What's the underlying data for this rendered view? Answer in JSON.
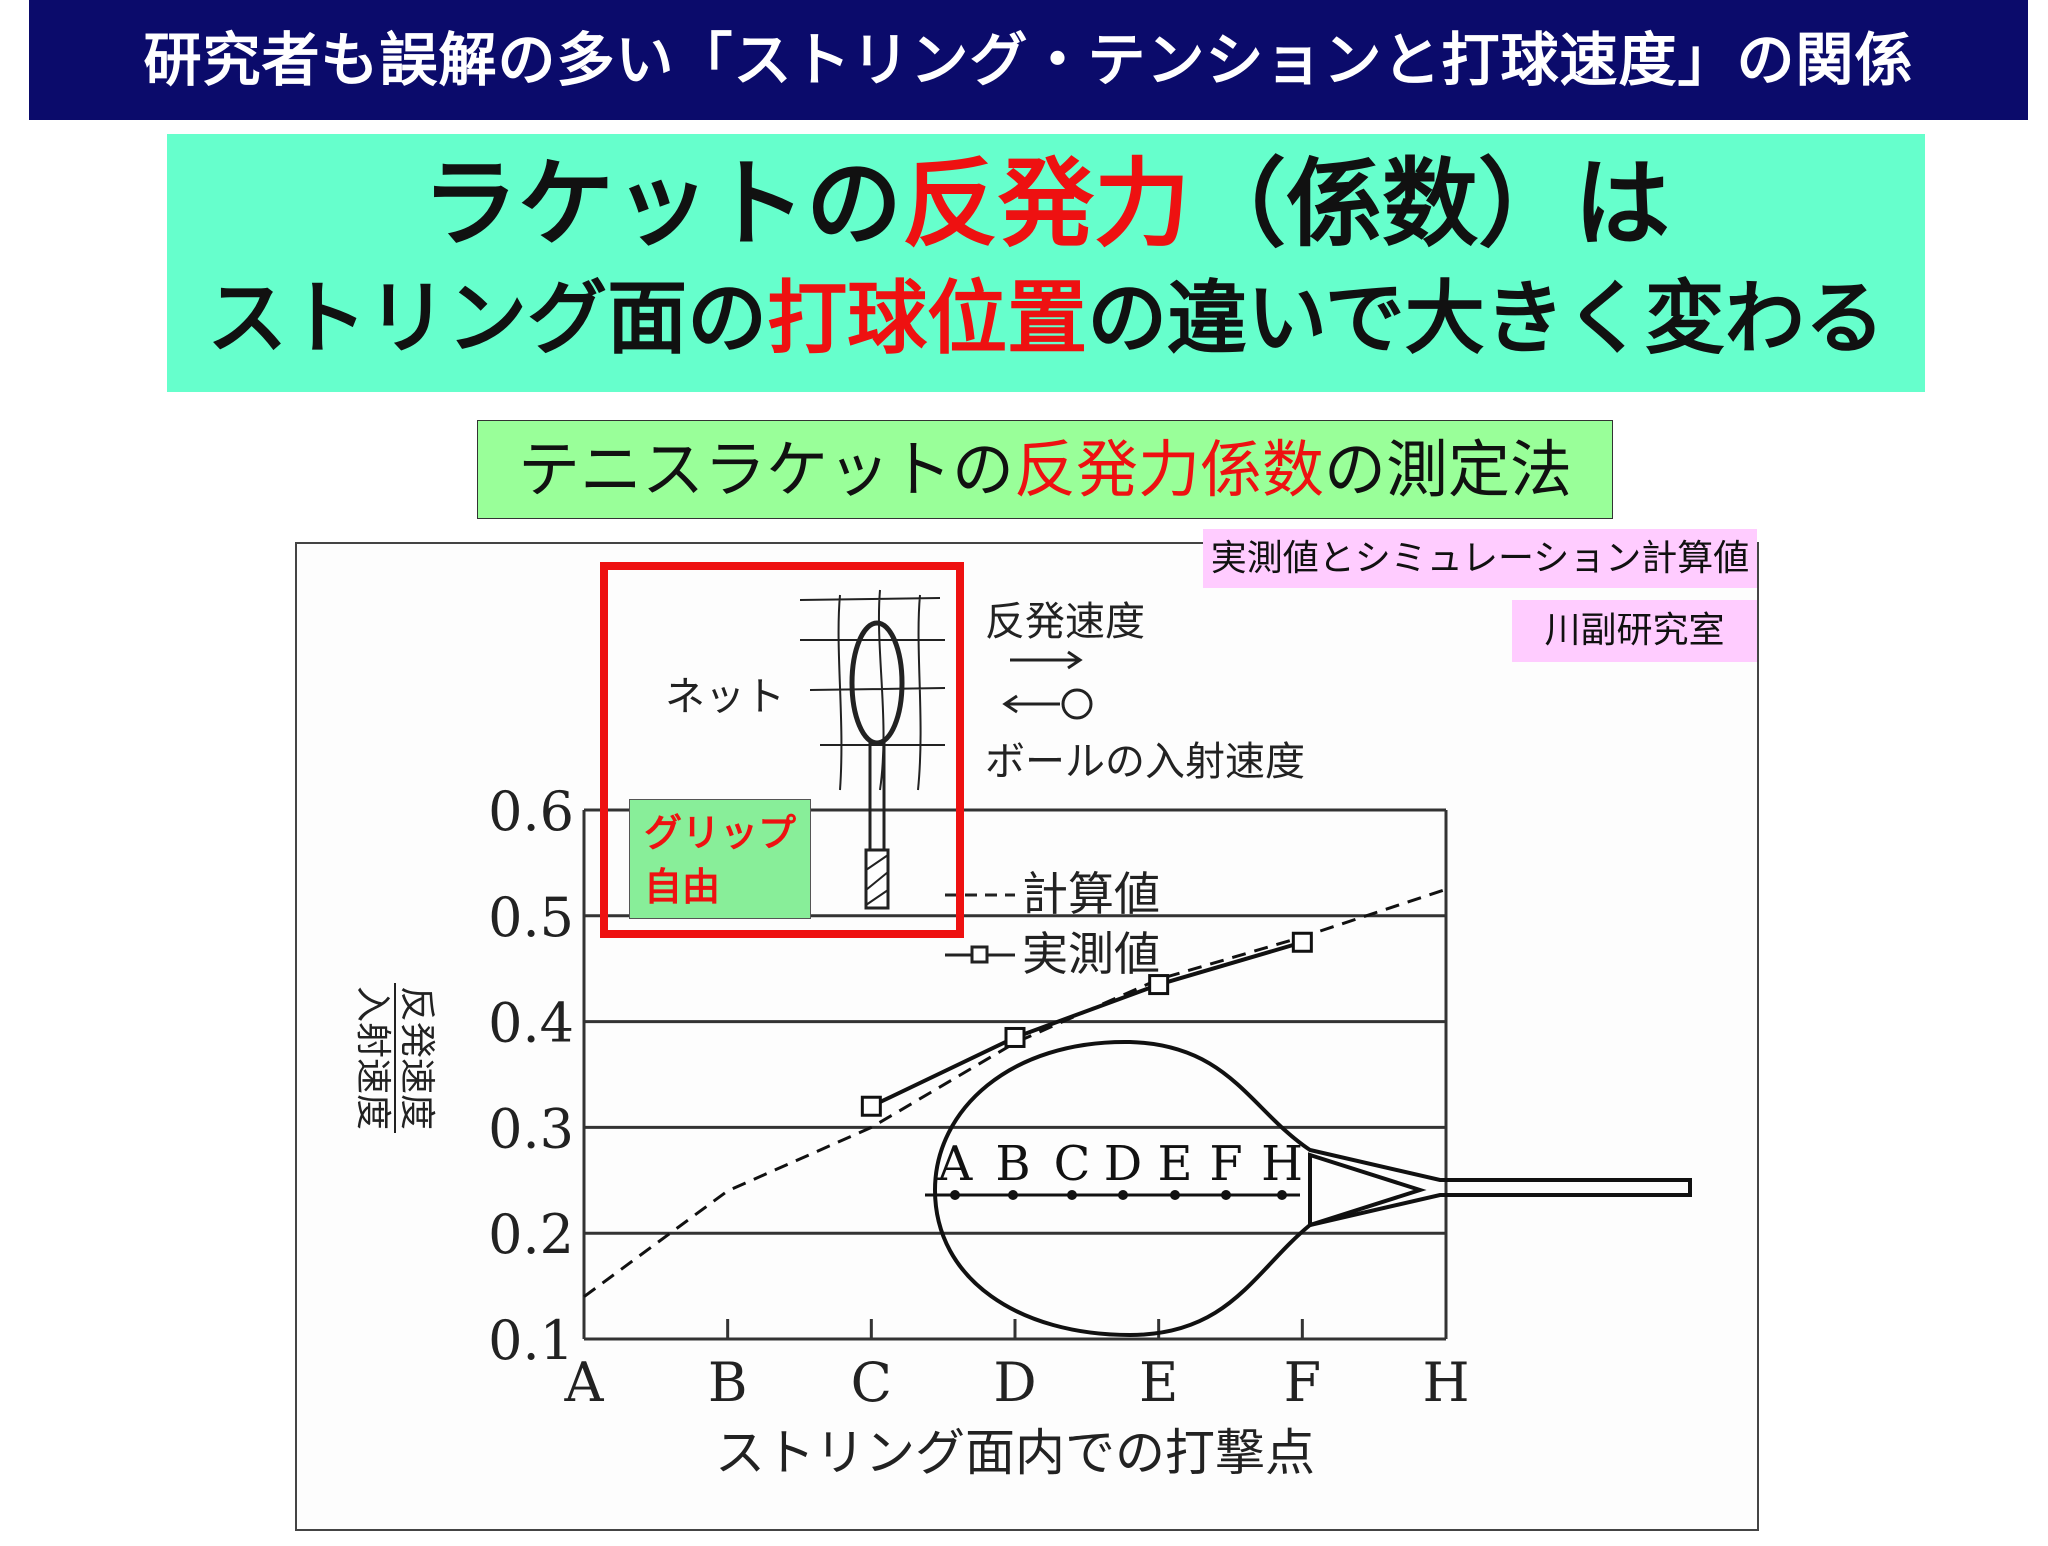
{
  "title": "研究者も誤解の多い「ストリング・テンションと打球速度」の関係",
  "headline": {
    "line1_a": "ラケットの",
    "line1_b": "反発力",
    "line1_c": "（係数）は",
    "line2_a": "ストリング面の",
    "line2_b": "打球位置",
    "line2_c": "の違いで大きく変わる"
  },
  "subtitle": {
    "a": "テニスラケットの",
    "b": "反発力係数",
    "c": "の測定法"
  },
  "notes": {
    "source": "実測値とシミュレーション計算値",
    "lab": "川副研究室"
  },
  "diagram": {
    "net": "ネット",
    "rebound_speed": "反発速度",
    "incident_speed": "ボールの入射速度",
    "grip_label_1": "グリップ",
    "grip_label_2": "自由",
    "racket_points": [
      "A",
      "B",
      "C",
      "D",
      "E",
      "F",
      "H"
    ]
  },
  "colors": {
    "title_bg": "#0b0b6b",
    "headline_bg": "#66ffcc",
    "subtitle_bg": "#99ff99",
    "accent_red": "#ee1111",
    "note_bg": "#ffccff"
  },
  "chart_data": {
    "type": "line",
    "xlabel": "ストリング面内での打撃点",
    "ylabel_numerator": "反発速度",
    "ylabel_denominator": "入射速度",
    "categories": [
      "A",
      "B",
      "C",
      "D",
      "E",
      "F",
      "H"
    ],
    "yticks": [
      "0.1",
      "0.2",
      "0.3",
      "0.4",
      "0.5",
      "0.6"
    ],
    "ylim": [
      0.1,
      0.6
    ],
    "grid": true,
    "legend": "top-center",
    "series": [
      {
        "name": "計算値",
        "style": "dashed",
        "values": [
          0.14,
          0.24,
          0.3,
          0.38,
          0.44,
          0.48,
          0.525
        ]
      },
      {
        "name": "実測値",
        "style": "solid-square-markers",
        "values": [
          null,
          null,
          0.32,
          0.385,
          0.435,
          0.475,
          null
        ]
      }
    ]
  }
}
